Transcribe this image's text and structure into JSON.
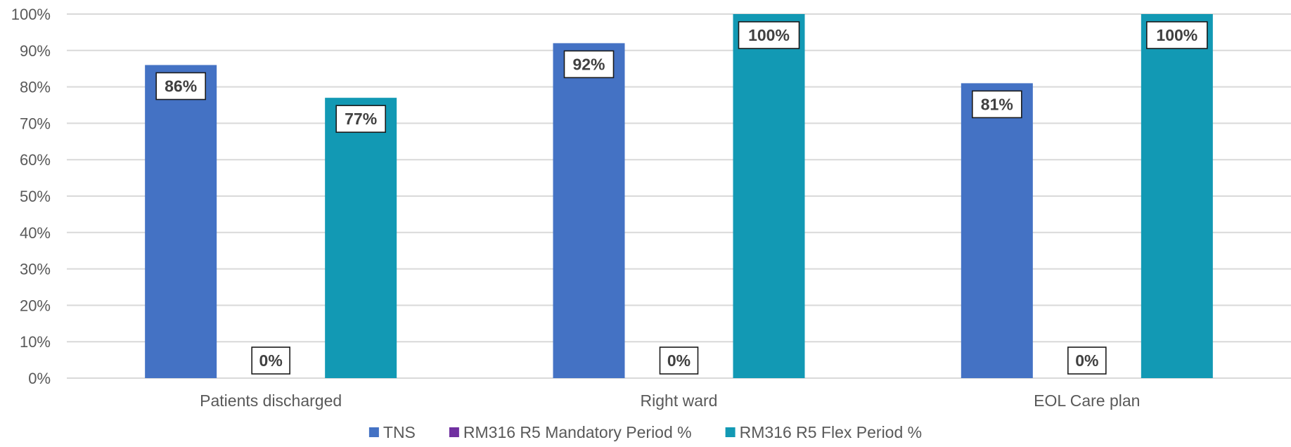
{
  "chart_data": {
    "type": "bar",
    "title": "",
    "xlabel": "",
    "ylabel": "",
    "categories": [
      "Patients discharged",
      "Right ward",
      "EOL Care plan"
    ],
    "series": [
      {
        "name": "TNS",
        "color": "#4472C4",
        "values": [
          86,
          92,
          81
        ]
      },
      {
        "name": "RM316 R5 Mandatory Period %",
        "color": "#7030A0",
        "values": [
          0,
          0,
          0
        ]
      },
      {
        "name": "RM316 R5 Flex Period %",
        "color": "#1299B4",
        "values": [
          77,
          100,
          100
        ]
      }
    ],
    "ylim": [
      0,
      100
    ],
    "yticks": [
      0,
      10,
      20,
      30,
      40,
      50,
      60,
      70,
      80,
      90,
      100
    ],
    "ytick_labels": [
      "0%",
      "10%",
      "20%",
      "30%",
      "40%",
      "50%",
      "60%",
      "70%",
      "80%",
      "90%",
      "100%"
    ],
    "data_labels": [
      [
        "86%",
        "92%",
        "81%"
      ],
      [
        "0%",
        "0%",
        "0%"
      ],
      [
        "77%",
        "100%",
        "100%"
      ]
    ],
    "grid": true,
    "legend_position": "bottom",
    "gridline_color": "#D9D9D9"
  }
}
